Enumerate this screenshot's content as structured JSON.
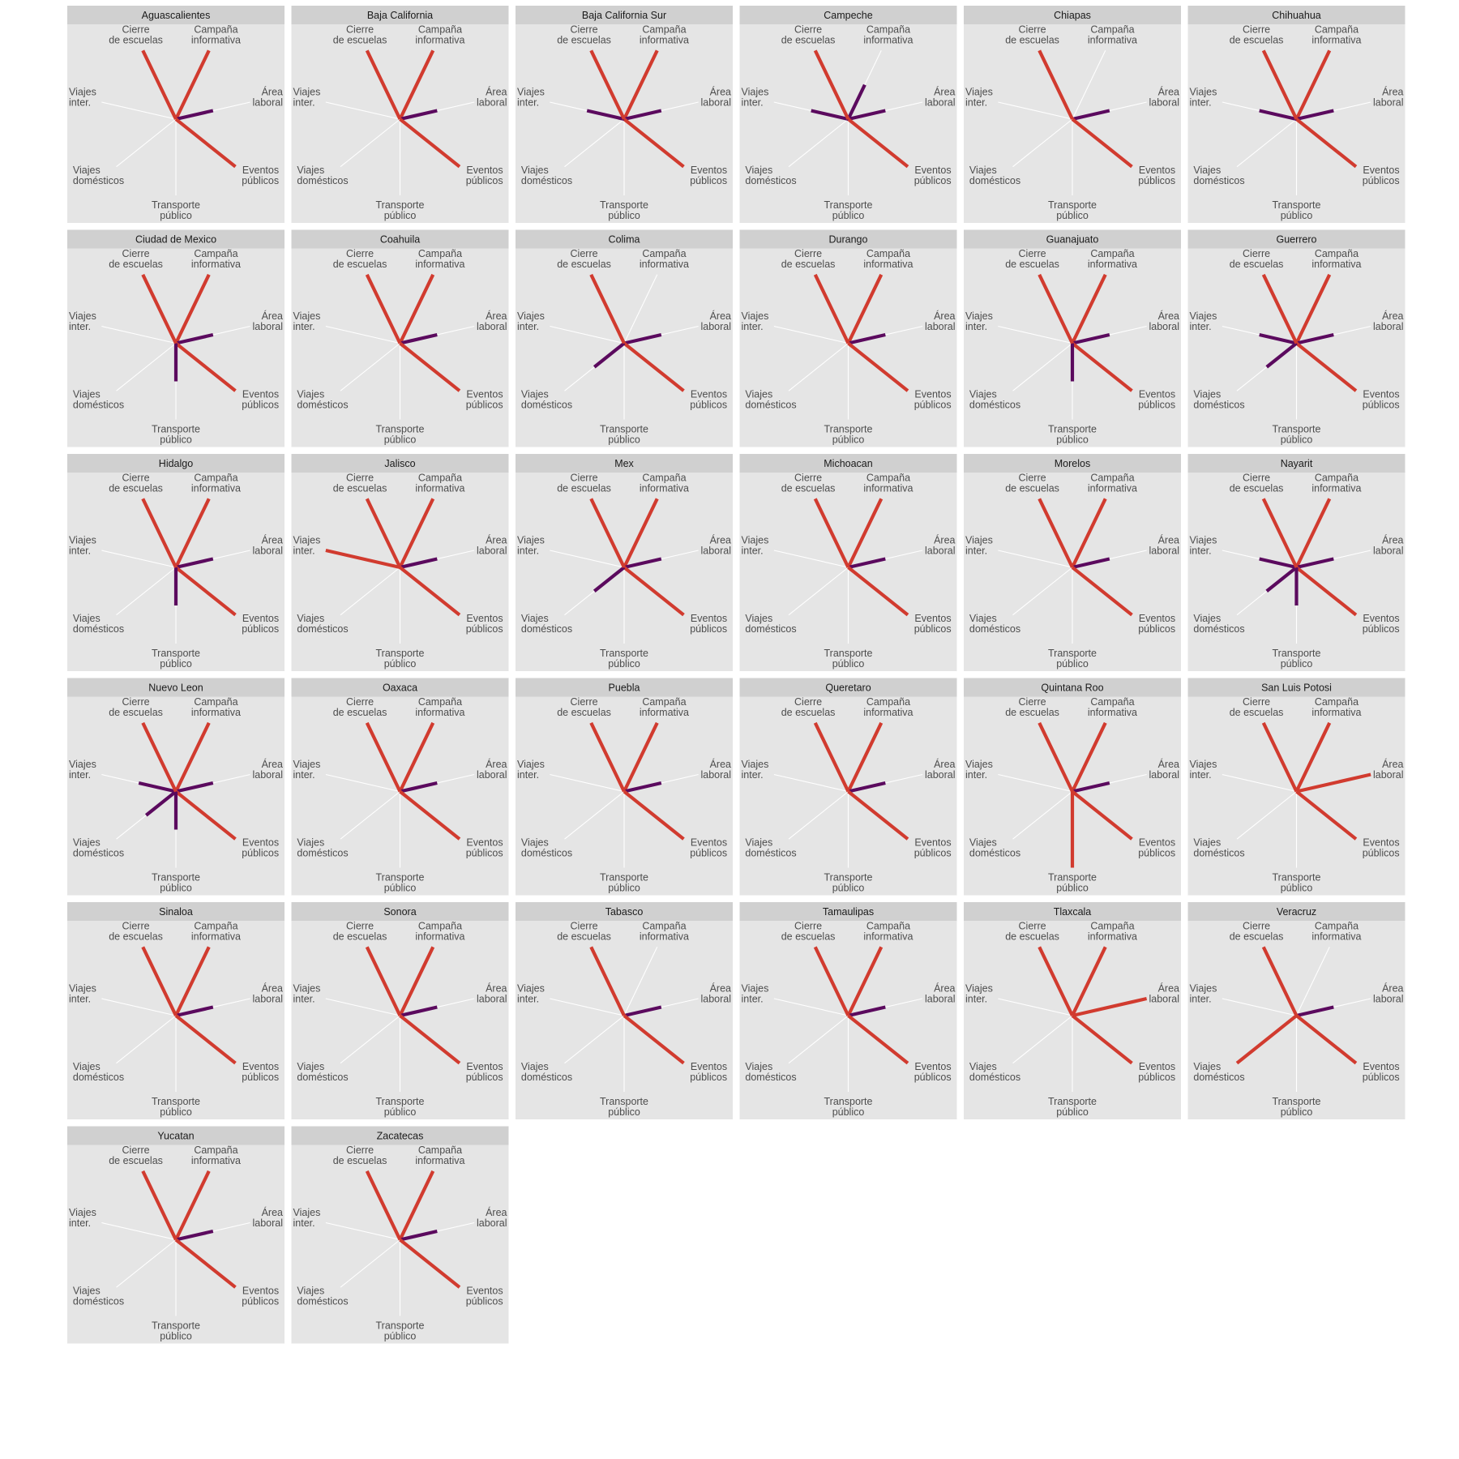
{
  "chart_data": {
    "type": "radial-small-multiples",
    "title": "",
    "axes": [
      {
        "key": "campana",
        "lines": [
          "Campaña",
          "informativa"
        ]
      },
      {
        "key": "area",
        "lines": [
          "Área",
          "laboral"
        ]
      },
      {
        "key": "eventos",
        "lines": [
          "Eventos",
          "públicos"
        ]
      },
      {
        "key": "transporte",
        "lines": [
          "Transporte",
          "público"
        ]
      },
      {
        "key": "domesticos",
        "lines": [
          "Viajes",
          "domésticos"
        ]
      },
      {
        "key": "inter",
        "lines": [
          "Viajes",
          "inter."
        ]
      },
      {
        "key": "cierre",
        "lines": [
          "Cierre",
          "de escuelas"
        ]
      }
    ],
    "levels": {
      "0": {
        "length": 0,
        "color": ""
      },
      "1": {
        "length": 0.5,
        "color": "#5b0a5e"
      },
      "2": {
        "length": 1.0,
        "color": "#d13b2f"
      }
    },
    "panel_style": {
      "panel_background": "#e5e5e5",
      "strip_background": "#d0d0d0",
      "guide_color": "#ffffff"
    },
    "states": [
      {
        "name": "Aguascalientes",
        "values": [
          2,
          1,
          2,
          0,
          0,
          0,
          2
        ]
      },
      {
        "name": "Baja California",
        "values": [
          2,
          1,
          2,
          0,
          0,
          0,
          2
        ]
      },
      {
        "name": "Baja California Sur",
        "values": [
          2,
          1,
          2,
          0,
          0,
          1,
          2
        ]
      },
      {
        "name": "Campeche",
        "values": [
          1,
          1,
          2,
          0,
          0,
          1,
          2
        ]
      },
      {
        "name": "Chiapas",
        "values": [
          0,
          1,
          2,
          0,
          0,
          0,
          2
        ]
      },
      {
        "name": "Chihuahua",
        "values": [
          2,
          1,
          2,
          0,
          0,
          1,
          2
        ]
      },
      {
        "name": "Ciudad de Mexico",
        "values": [
          2,
          1,
          2,
          1,
          0,
          0,
          2
        ]
      },
      {
        "name": "Coahuila",
        "values": [
          2,
          1,
          2,
          0,
          0,
          0,
          2
        ]
      },
      {
        "name": "Colima",
        "values": [
          0,
          1,
          2,
          0,
          1,
          0,
          2
        ]
      },
      {
        "name": "Durango",
        "values": [
          2,
          1,
          2,
          0,
          0,
          0,
          2
        ]
      },
      {
        "name": "Guanajuato",
        "values": [
          2,
          1,
          2,
          1,
          0,
          0,
          2
        ]
      },
      {
        "name": "Guerrero",
        "values": [
          2,
          1,
          2,
          0,
          1,
          1,
          2
        ]
      },
      {
        "name": "Hidalgo",
        "values": [
          2,
          1,
          2,
          1,
          0,
          0,
          2
        ]
      },
      {
        "name": "Jalisco",
        "values": [
          2,
          1,
          2,
          0,
          0,
          2,
          2
        ]
      },
      {
        "name": "Mex",
        "values": [
          2,
          1,
          2,
          0,
          1,
          0,
          2
        ]
      },
      {
        "name": "Michoacan",
        "values": [
          2,
          1,
          2,
          0,
          0,
          0,
          2
        ]
      },
      {
        "name": "Morelos",
        "values": [
          2,
          1,
          2,
          0,
          0,
          0,
          2
        ]
      },
      {
        "name": "Nayarit",
        "values": [
          2,
          1,
          2,
          1,
          1,
          1,
          2
        ]
      },
      {
        "name": "Nuevo Leon",
        "values": [
          2,
          1,
          2,
          1,
          1,
          1,
          2
        ]
      },
      {
        "name": "Oaxaca",
        "values": [
          2,
          1,
          2,
          0,
          0,
          0,
          2
        ]
      },
      {
        "name": "Puebla",
        "values": [
          2,
          1,
          2,
          0,
          0,
          0,
          2
        ]
      },
      {
        "name": "Queretaro",
        "values": [
          2,
          1,
          2,
          0,
          0,
          0,
          2
        ]
      },
      {
        "name": "Quintana Roo",
        "values": [
          2,
          1,
          2,
          2,
          0,
          0,
          2
        ]
      },
      {
        "name": "San Luis Potosi",
        "values": [
          2,
          2,
          2,
          0,
          0,
          0,
          2
        ]
      },
      {
        "name": "Sinaloa",
        "values": [
          2,
          1,
          2,
          0,
          0,
          0,
          2
        ]
      },
      {
        "name": "Sonora",
        "values": [
          2,
          1,
          2,
          0,
          0,
          0,
          2
        ]
      },
      {
        "name": "Tabasco",
        "values": [
          0,
          1,
          2,
          0,
          0,
          0,
          2
        ]
      },
      {
        "name": "Tamaulipas",
        "values": [
          2,
          1,
          2,
          0,
          0,
          0,
          2
        ]
      },
      {
        "name": "Tlaxcala",
        "values": [
          2,
          2,
          2,
          0,
          0,
          0,
          2
        ]
      },
      {
        "name": "Veracruz",
        "values": [
          0,
          1,
          2,
          0,
          2,
          0,
          2
        ]
      },
      {
        "name": "Yucatan",
        "values": [
          2,
          1,
          2,
          0,
          0,
          0,
          2
        ]
      },
      {
        "name": "Zacatecas",
        "values": [
          2,
          1,
          2,
          0,
          0,
          0,
          2
        ]
      }
    ]
  }
}
